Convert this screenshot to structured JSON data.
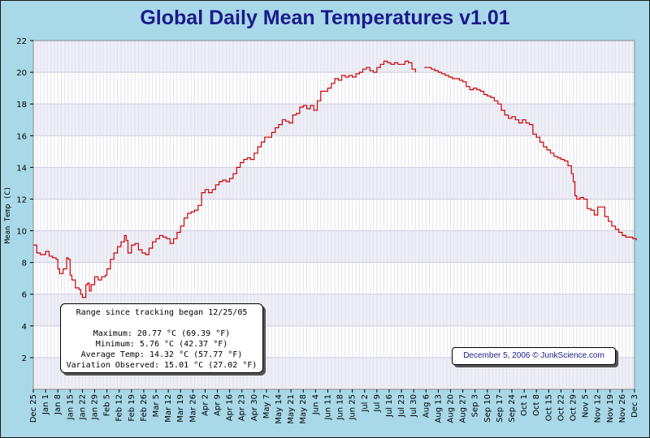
{
  "title": "Global Daily Mean Temperatures v1.01",
  "chart_data": {
    "type": "line",
    "title": "Global Daily Mean Temperatures v1.01",
    "xlabel": "",
    "ylabel": "Mean Temp (C)",
    "ylim": [
      0,
      22
    ],
    "yticks": [
      2,
      4,
      6,
      8,
      10,
      12,
      14,
      16,
      18,
      20,
      22
    ],
    "xlim_days": [
      0,
      343
    ],
    "grid": true,
    "line_color": "#cc0000",
    "xtick_labels": [
      "Dec 25",
      "Jan 1",
      "Jan 8",
      "Jan 15",
      "Jan 22",
      "Jan 29",
      "Feb 5",
      "Feb 12",
      "Feb 19",
      "Feb 26",
      "Mar 5",
      "Mar 12",
      "Mar 19",
      "Mar 26",
      "Apr 2",
      "Apr 9",
      "Apr 16",
      "Apr 23",
      "Apr 30",
      "May 7",
      "May 14",
      "May 21",
      "May 28",
      "Jun 4",
      "Jun 11",
      "Jun 18",
      "Jun 25",
      "Jul 2",
      "Jul 9",
      "Jul 16",
      "Jul 23",
      "Jul 30",
      "Aug 6",
      "Aug 13",
      "Aug 20",
      "Aug 27",
      "Sep 3",
      "Sep 10",
      "Sep 17",
      "Sep 24",
      "Oct 1",
      "Oct 8",
      "Oct 15",
      "Oct 22",
      "Oct 29",
      "Nov 5",
      "Nov 12",
      "Nov 19",
      "Nov 26",
      "Dec 3"
    ],
    "series": [
      {
        "points": [
          [
            "2005-12-25",
            9.1
          ],
          [
            "2005-12-27",
            8.6
          ],
          [
            "2005-12-29",
            8.5
          ],
          [
            "2006-01-01",
            8.7
          ],
          [
            "2006-01-03",
            8.4
          ],
          [
            "2006-01-05",
            8.3
          ],
          [
            "2006-01-07",
            8.2
          ],
          [
            "2006-01-08",
            7.6
          ],
          [
            "2006-01-09",
            7.3
          ],
          [
            "2006-01-11",
            7.6
          ],
          [
            "2006-01-13",
            8.3
          ],
          [
            "2006-01-14",
            8.2
          ],
          [
            "2006-01-15",
            7.2
          ],
          [
            "2006-01-16",
            6.9
          ],
          [
            "2006-01-17",
            6.9
          ],
          [
            "2006-01-18",
            6.4
          ],
          [
            "2006-01-20",
            6.3
          ],
          [
            "2006-01-21",
            6.0
          ],
          [
            "2006-01-22",
            5.8
          ],
          [
            "2006-01-24",
            6.6
          ],
          [
            "2006-01-25",
            6.7
          ],
          [
            "2006-01-26",
            6.2
          ],
          [
            "2006-01-27",
            6.6
          ],
          [
            "2006-01-29",
            7.1
          ],
          [
            "2006-01-31",
            6.9
          ],
          [
            "2006-02-02",
            7.1
          ],
          [
            "2006-02-04",
            7.2
          ],
          [
            "2006-02-05",
            7.6
          ],
          [
            "2006-02-07",
            8.2
          ],
          [
            "2006-02-09",
            8.6
          ],
          [
            "2006-02-11",
            9.0
          ],
          [
            "2006-02-13",
            9.3
          ],
          [
            "2006-02-15",
            9.7
          ],
          [
            "2006-02-16",
            9.4
          ],
          [
            "2006-02-17",
            8.6
          ],
          [
            "2006-02-19",
            9.1
          ],
          [
            "2006-02-21",
            9.2
          ],
          [
            "2006-02-23",
            8.8
          ],
          [
            "2006-02-25",
            8.6
          ],
          [
            "2006-02-27",
            8.5
          ],
          [
            "2006-03-01",
            8.9
          ],
          [
            "2006-03-03",
            9.3
          ],
          [
            "2006-03-05",
            9.5
          ],
          [
            "2006-03-07",
            9.7
          ],
          [
            "2006-03-09",
            9.6
          ],
          [
            "2006-03-11",
            9.5
          ],
          [
            "2006-03-13",
            9.2
          ],
          [
            "2006-03-15",
            9.5
          ],
          [
            "2006-03-17",
            9.9
          ],
          [
            "2006-03-19",
            10.3
          ],
          [
            "2006-03-21",
            10.8
          ],
          [
            "2006-03-23",
            11.1
          ],
          [
            "2006-03-25",
            11.2
          ],
          [
            "2006-03-27",
            11.3
          ],
          [
            "2006-03-29",
            11.6
          ],
          [
            "2006-03-31",
            12.4
          ],
          [
            "2006-04-02",
            12.6
          ],
          [
            "2006-04-04",
            12.4
          ],
          [
            "2006-04-06",
            12.6
          ],
          [
            "2006-04-08",
            12.9
          ],
          [
            "2006-04-10",
            13.1
          ],
          [
            "2006-04-12",
            13.2
          ],
          [
            "2006-04-14",
            13.1
          ],
          [
            "2006-04-16",
            13.3
          ],
          [
            "2006-04-18",
            13.6
          ],
          [
            "2006-04-20",
            14.0
          ],
          [
            "2006-04-22",
            14.3
          ],
          [
            "2006-04-24",
            14.5
          ],
          [
            "2006-04-26",
            14.6
          ],
          [
            "2006-04-28",
            14.5
          ],
          [
            "2006-04-30",
            14.9
          ],
          [
            "2006-05-02",
            15.3
          ],
          [
            "2006-05-04",
            15.6
          ],
          [
            "2006-05-06",
            15.9
          ],
          [
            "2006-05-08",
            15.9
          ],
          [
            "2006-05-10",
            16.2
          ],
          [
            "2006-05-12",
            16.5
          ],
          [
            "2006-05-14",
            16.7
          ],
          [
            "2006-05-16",
            17.0
          ],
          [
            "2006-05-18",
            16.9
          ],
          [
            "2006-05-20",
            16.8
          ],
          [
            "2006-05-22",
            17.3
          ],
          [
            "2006-05-24",
            17.4
          ],
          [
            "2006-05-26",
            17.8
          ],
          [
            "2006-05-28",
            17.9
          ],
          [
            "2006-05-30",
            17.7
          ],
          [
            "2006-06-01",
            17.9
          ],
          [
            "2006-06-03",
            17.6
          ],
          [
            "2006-06-05",
            18.2
          ],
          [
            "2006-06-07",
            18.8
          ],
          [
            "2006-06-09",
            18.8
          ],
          [
            "2006-06-11",
            19.0
          ],
          [
            "2006-06-13",
            19.3
          ],
          [
            "2006-06-15",
            19.6
          ],
          [
            "2006-06-17",
            19.5
          ],
          [
            "2006-06-19",
            19.8
          ],
          [
            "2006-06-21",
            19.7
          ],
          [
            "2006-06-23",
            19.8
          ],
          [
            "2006-06-25",
            19.7
          ],
          [
            "2006-06-27",
            19.9
          ],
          [
            "2006-06-29",
            20.0
          ],
          [
            "2006-07-01",
            20.2
          ],
          [
            "2006-07-03",
            20.3
          ],
          [
            "2006-07-05",
            20.1
          ],
          [
            "2006-07-07",
            20.0
          ],
          [
            "2006-07-09",
            20.3
          ],
          [
            "2006-07-11",
            20.5
          ],
          [
            "2006-07-13",
            20.7
          ],
          [
            "2006-07-15",
            20.6
          ],
          [
            "2006-07-17",
            20.5
          ],
          [
            "2006-07-19",
            20.6
          ],
          [
            "2006-07-21",
            20.5
          ],
          [
            "2006-07-23",
            20.5
          ],
          [
            "2006-07-25",
            20.7
          ],
          [
            "2006-07-27",
            20.6
          ],
          [
            "2006-07-29",
            20.2
          ],
          [
            "2006-07-31",
            20.0
          ],
          [
            null,
            null
          ],
          [
            "2006-08-05",
            20.3
          ],
          [
            "2006-08-07",
            20.3
          ],
          [
            "2006-08-09",
            20.2
          ],
          [
            "2006-08-11",
            20.1
          ],
          [
            "2006-08-13",
            20.0
          ],
          [
            "2006-08-15",
            19.9
          ],
          [
            "2006-08-17",
            19.8
          ],
          [
            "2006-08-19",
            19.7
          ],
          [
            "2006-08-21",
            19.6
          ],
          [
            "2006-08-23",
            19.6
          ],
          [
            "2006-08-25",
            19.5
          ],
          [
            "2006-08-27",
            19.4
          ],
          [
            "2006-08-29",
            19.1
          ],
          [
            "2006-08-31",
            18.9
          ],
          [
            "2006-09-02",
            19.0
          ],
          [
            "2006-09-04",
            18.9
          ],
          [
            "2006-09-06",
            18.8
          ],
          [
            "2006-09-08",
            18.6
          ],
          [
            "2006-09-10",
            18.5
          ],
          [
            "2006-09-12",
            18.4
          ],
          [
            "2006-09-14",
            18.2
          ],
          [
            "2006-09-16",
            18.0
          ],
          [
            "2006-09-18",
            17.6
          ],
          [
            "2006-09-20",
            17.3
          ],
          [
            "2006-09-22",
            17.1
          ],
          [
            "2006-09-24",
            17.2
          ],
          [
            "2006-09-26",
            17.0
          ],
          [
            "2006-09-28",
            16.8
          ],
          [
            "2006-09-30",
            17.0
          ],
          [
            "2006-10-02",
            16.8
          ],
          [
            "2006-10-04",
            16.7
          ],
          [
            "2006-10-06",
            16.1
          ],
          [
            "2006-10-08",
            15.9
          ],
          [
            "2006-10-10",
            15.6
          ],
          [
            "2006-10-12",
            15.3
          ],
          [
            "2006-10-14",
            15.1
          ],
          [
            "2006-10-16",
            14.9
          ],
          [
            "2006-10-18",
            14.7
          ],
          [
            "2006-10-20",
            14.6
          ],
          [
            "2006-10-22",
            14.5
          ],
          [
            "2006-10-24",
            14.4
          ],
          [
            "2006-10-26",
            14.1
          ],
          [
            "2006-10-28",
            13.6
          ],
          [
            "2006-10-29",
            13.1
          ],
          [
            "2006-10-30",
            12.2
          ],
          [
            "2006-10-31",
            12.0
          ],
          [
            "2006-11-02",
            12.1
          ],
          [
            "2006-11-04",
            12.0
          ],
          [
            "2006-11-06",
            11.4
          ],
          [
            "2006-11-08",
            11.3
          ],
          [
            "2006-11-10",
            11.0
          ],
          [
            "2006-11-12",
            11.5
          ],
          [
            "2006-11-14",
            11.5
          ],
          [
            "2006-11-16",
            10.9
          ],
          [
            "2006-11-18",
            10.6
          ],
          [
            "2006-11-20",
            10.3
          ],
          [
            "2006-11-22",
            10.1
          ],
          [
            "2006-11-24",
            9.9
          ],
          [
            "2006-11-26",
            9.7
          ],
          [
            "2006-11-28",
            9.6
          ],
          [
            "2006-11-30",
            9.6
          ],
          [
            "2006-12-02",
            9.5
          ],
          [
            "2006-12-04",
            9.4
          ]
        ]
      }
    ]
  },
  "stats": {
    "heading": "Range since tracking began 12/25/05",
    "maximum": "Maximum: 20.77 °C (69.39 °F)",
    "minimum": "Minimum: 5.76 °C (42.37 °F)",
    "average": "Average Temp: 14.32 °C (57.77 °F)",
    "variation": "Variation Observed: 15.01 °C (27.02 °F)"
  },
  "date_credit": "December 5, 2006 © JunkScience.com"
}
